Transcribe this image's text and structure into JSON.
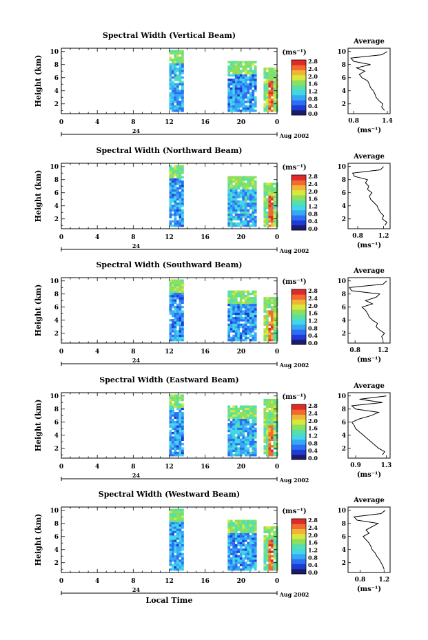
{
  "figure": {
    "xlabel_bottom": "Local Time",
    "date_label": "Aug 2002",
    "day_marker": "24"
  },
  "colorbar": {
    "unit": "(ms⁻¹)",
    "ticks": [
      "2.8",
      "2.4",
      "2.0",
      "1.6",
      "1.2",
      "0.8",
      "0.4",
      "0.0"
    ],
    "colors": [
      "#1c1c6e",
      "#1f3bd6",
      "#2c6ff2",
      "#37a8f5",
      "#42d6e6",
      "#56e0a8",
      "#8ee05c",
      "#d7e83c",
      "#f2b437",
      "#f26a2e",
      "#e02a28"
    ]
  },
  "chart_data": [
    {
      "type": "heatmap",
      "title": "Spectral Width (Vertical Beam)",
      "xlabel": "",
      "ylabel": "Height (km)",
      "x_ticks": [
        "0",
        "4",
        "8",
        "12",
        "16",
        "20",
        "0"
      ],
      "y_ticks": [
        "2",
        "4",
        "6",
        "8",
        "10"
      ],
      "xlim": [
        0,
        24
      ],
      "ylim": [
        0.5,
        10.5
      ],
      "colorbar_range": [
        0.0,
        2.8
      ],
      "data_blocks": [
        {
          "x_start": 12.0,
          "x_end": 13.5,
          "y_start": 0.8,
          "y_end": 10.0,
          "mean": 0.9
        },
        {
          "x_start": 18.5,
          "x_end": 21.5,
          "y_start": 0.8,
          "y_end": 8.5,
          "mean": 0.8
        },
        {
          "x_start": 22.5,
          "x_end": 24.0,
          "y_start": 0.8,
          "y_end": 7.5,
          "mean": 1.6
        }
      ],
      "average_profile": {
        "title": "Average",
        "xlabel": "(ms⁻¹)",
        "x_ticks": [
          "0.8",
          "1.4"
        ],
        "xlim": [
          0.7,
          1.45
        ],
        "height": [
          1.0,
          1.5,
          2.0,
          2.5,
          3.0,
          3.5,
          4.0,
          4.5,
          5.0,
          5.5,
          6.0,
          6.5,
          7.0,
          7.5,
          8.0,
          8.5,
          9.0,
          9.5,
          10.0
        ],
        "value": [
          1.35,
          1.3,
          1.32,
          1.25,
          1.2,
          1.18,
          1.15,
          1.1,
          1.08,
          1.05,
          0.95,
          0.9,
          1.0,
          0.85,
          1.1,
          0.8,
          0.75,
          1.3,
          1.4
        ]
      }
    },
    {
      "type": "heatmap",
      "title": "Spectral Width (Northward Beam)",
      "xlabel": "",
      "ylabel": "Height (km)",
      "x_ticks": [
        "0",
        "4",
        "8",
        "12",
        "16",
        "20",
        "0"
      ],
      "y_ticks": [
        "2",
        "4",
        "6",
        "8",
        "10"
      ],
      "xlim": [
        0,
        24
      ],
      "ylim": [
        0.5,
        10.5
      ],
      "colorbar_range": [
        0.0,
        2.8
      ],
      "data_blocks": [
        {
          "x_start": 12.0,
          "x_end": 13.5,
          "y_start": 0.8,
          "y_end": 10.0,
          "mean": 0.8
        },
        {
          "x_start": 18.5,
          "x_end": 21.5,
          "y_start": 0.8,
          "y_end": 8.5,
          "mean": 0.9
        },
        {
          "x_start": 22.5,
          "x_end": 24.0,
          "y_start": 0.8,
          "y_end": 7.5,
          "mean": 1.6
        }
      ],
      "average_profile": {
        "title": "Average",
        "xlabel": "(ms⁻¹)",
        "x_ticks": [
          "0.8",
          "1.2"
        ],
        "xlim": [
          0.65,
          1.3
        ],
        "height": [
          1.0,
          1.5,
          2.0,
          2.5,
          3.0,
          3.5,
          4.0,
          4.5,
          5.0,
          5.5,
          6.0,
          6.5,
          7.0,
          7.5,
          8.0,
          8.5,
          9.0,
          9.5,
          10.0
        ],
        "value": [
          1.22,
          1.25,
          1.18,
          1.2,
          1.15,
          1.12,
          1.1,
          1.05,
          1.0,
          0.98,
          1.02,
          0.95,
          0.97,
          0.92,
          0.95,
          0.75,
          0.72,
          1.15,
          1.2
        ]
      }
    },
    {
      "type": "heatmap",
      "title": "Spectral Width (Southward Beam)",
      "xlabel": "",
      "ylabel": "Height (km)",
      "x_ticks": [
        "0",
        "4",
        "8",
        "12",
        "16",
        "20",
        "0"
      ],
      "y_ticks": [
        "2",
        "4",
        "6",
        "8",
        "10"
      ],
      "xlim": [
        0,
        24
      ],
      "ylim": [
        0.5,
        10.5
      ],
      "colorbar_range": [
        0.0,
        2.8
      ],
      "data_blocks": [
        {
          "x_start": 12.0,
          "x_end": 13.5,
          "y_start": 0.8,
          "y_end": 10.0,
          "mean": 0.8
        },
        {
          "x_start": 18.5,
          "x_end": 21.5,
          "y_start": 0.8,
          "y_end": 8.5,
          "mean": 0.8
        },
        {
          "x_start": 22.5,
          "x_end": 24.0,
          "y_start": 0.8,
          "y_end": 7.5,
          "mean": 1.7
        }
      ],
      "average_profile": {
        "title": "Average",
        "xlabel": "(ms⁻¹)",
        "x_ticks": [
          "0.8",
          "1.2"
        ],
        "xlim": [
          0.7,
          1.3
        ],
        "height": [
          1.0,
          1.5,
          2.0,
          2.5,
          3.0,
          3.5,
          4.0,
          4.5,
          5.0,
          5.5,
          6.0,
          6.5,
          7.0,
          7.5,
          8.0,
          8.5,
          9.0,
          9.5,
          10.0
        ],
        "value": [
          1.2,
          1.18,
          1.22,
          1.15,
          1.1,
          1.12,
          1.05,
          1.0,
          0.98,
          0.95,
          0.9,
          1.05,
          0.95,
          1.1,
          1.15,
          0.75,
          0.72,
          1.2,
          1.25
        ]
      }
    },
    {
      "type": "heatmap",
      "title": "Spectral Width (Eastward Beam)",
      "xlabel": "",
      "ylabel": "Height (km)",
      "x_ticks": [
        "0",
        "4",
        "8",
        "12",
        "16",
        "20",
        "0"
      ],
      "y_ticks": [
        "2",
        "4",
        "6",
        "8",
        "10"
      ],
      "xlim": [
        0,
        24
      ],
      "ylim": [
        0.5,
        10.5
      ],
      "colorbar_range": [
        0.0,
        2.8
      ],
      "data_blocks": [
        {
          "x_start": 12.0,
          "x_end": 13.5,
          "y_start": 0.8,
          "y_end": 10.0,
          "mean": 0.8
        },
        {
          "x_start": 18.5,
          "x_end": 21.5,
          "y_start": 0.8,
          "y_end": 8.5,
          "mean": 0.9
        },
        {
          "x_start": 22.5,
          "x_end": 24.0,
          "y_start": 0.8,
          "y_end": 9.5,
          "mean": 1.6
        }
      ],
      "average_profile": {
        "title": "Average",
        "xlabel": "(ms⁻¹)",
        "x_ticks": [
          "0.9",
          "1.3"
        ],
        "xlim": [
          0.8,
          1.35
        ],
        "height": [
          1.0,
          1.5,
          2.0,
          2.5,
          3.0,
          3.5,
          4.0,
          4.5,
          5.0,
          5.5,
          6.0,
          6.5,
          7.0,
          7.5,
          8.0,
          8.5,
          9.0,
          9.5,
          10.0
        ],
        "value": [
          1.25,
          1.28,
          1.2,
          1.15,
          1.1,
          1.05,
          1.0,
          0.95,
          0.9,
          0.88,
          0.85,
          0.95,
          1.1,
          1.2,
          0.9,
          0.85,
          1.25,
          0.95,
          1.3
        ]
      }
    },
    {
      "type": "heatmap",
      "title": "Spectral Width (Westward Beam)",
      "xlabel": "Local Time",
      "ylabel": "Height (km)",
      "x_ticks": [
        "0",
        "4",
        "8",
        "12",
        "16",
        "20",
        "0"
      ],
      "y_ticks": [
        "2",
        "4",
        "6",
        "8",
        "10"
      ],
      "xlim": [
        0,
        24
      ],
      "ylim": [
        0.5,
        10.5
      ],
      "colorbar_range": [
        0.0,
        2.8
      ],
      "data_blocks": [
        {
          "x_start": 12.0,
          "x_end": 13.5,
          "y_start": 0.8,
          "y_end": 10.0,
          "mean": 0.8
        },
        {
          "x_start": 18.5,
          "x_end": 21.5,
          "y_start": 0.8,
          "y_end": 8.5,
          "mean": 0.8
        },
        {
          "x_start": 22.5,
          "x_end": 24.0,
          "y_start": 0.8,
          "y_end": 7.5,
          "mean": 1.5
        }
      ],
      "average_profile": {
        "title": "Average",
        "xlabel": "(ms⁻¹)",
        "x_ticks": [
          "0.8",
          "1.2"
        ],
        "xlim": [
          0.6,
          1.3
        ],
        "height": [
          1.0,
          1.5,
          2.0,
          2.5,
          3.0,
          3.5,
          4.0,
          4.5,
          5.0,
          5.5,
          6.0,
          6.5,
          7.0,
          7.5,
          8.0,
          8.5,
          9.0,
          9.5,
          10.0
        ],
        "value": [
          1.2,
          1.18,
          1.15,
          1.12,
          1.08,
          1.05,
          1.0,
          0.98,
          0.95,
          0.9,
          0.85,
          0.95,
          0.9,
          1.0,
          1.1,
          0.75,
          0.7,
          1.15,
          1.22
        ]
      }
    }
  ]
}
